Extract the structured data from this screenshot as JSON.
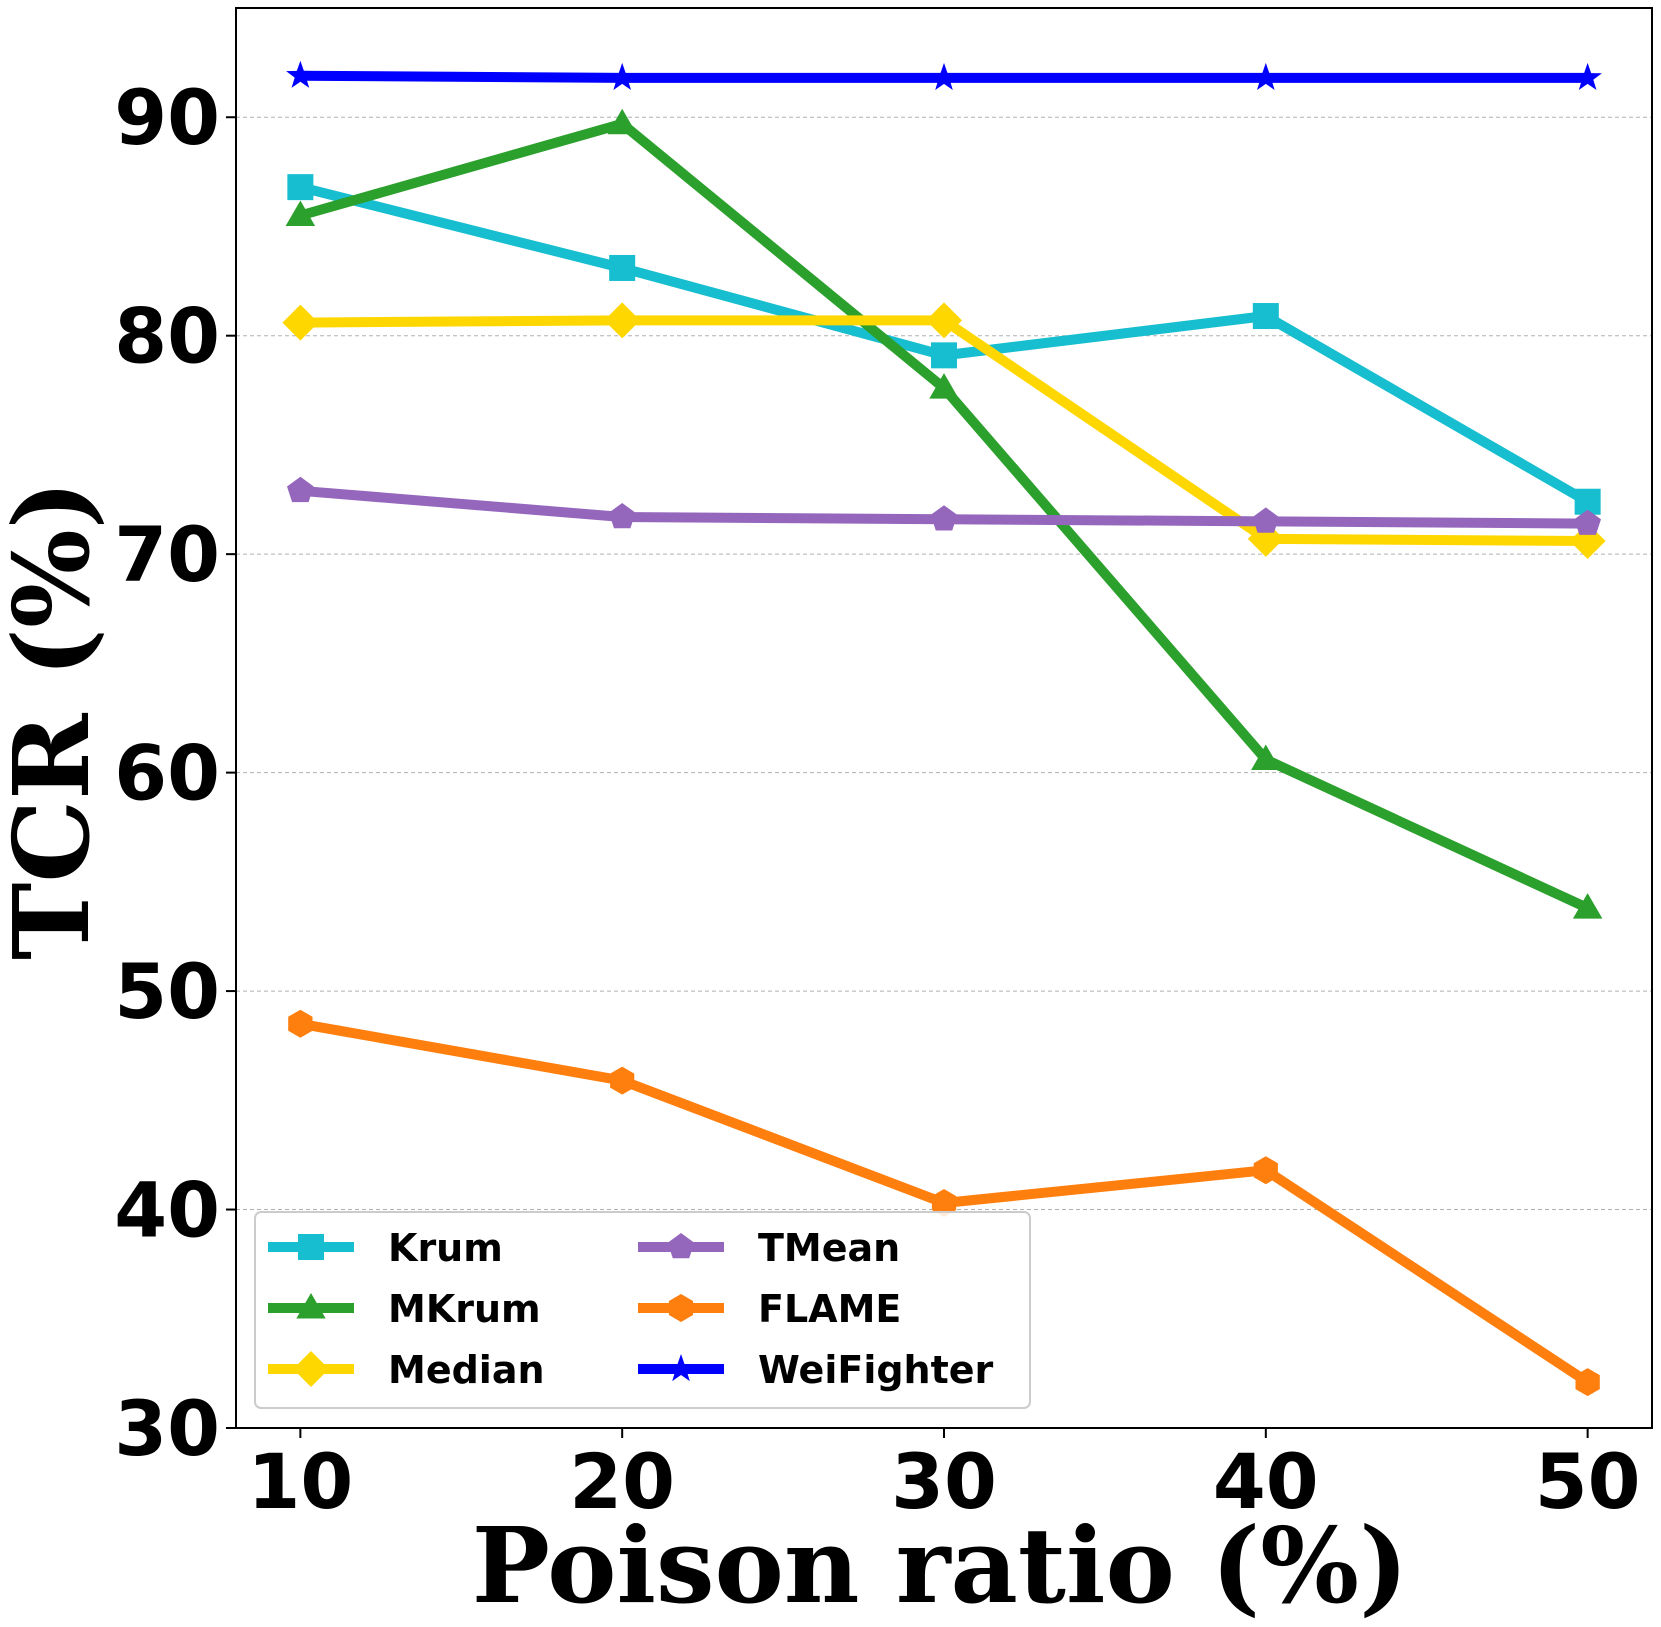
{
  "chart_data": {
    "type": "line",
    "title": "",
    "xlabel": "Poison ratio (%)",
    "ylabel": "TCR (%)",
    "x": [
      10,
      20,
      30,
      40,
      50
    ],
    "xticks": [
      "10",
      "20",
      "30",
      "40",
      "50"
    ],
    "yticks": [
      "30",
      "40",
      "50",
      "60",
      "70",
      "80",
      "90"
    ],
    "xlim": [
      8,
      52
    ],
    "ylim": [
      30,
      95
    ],
    "grid": "horizontal-dashed",
    "legend_position": "lower-left",
    "series": [
      {
        "name": "Krum",
        "color": "#17becf",
        "marker": "square",
        "values": [
          86.8,
          83.1,
          79.1,
          80.9,
          72.4
        ]
      },
      {
        "name": "MKrum",
        "color": "#2ca02c",
        "marker": "triangle",
        "values": [
          85.5,
          89.7,
          77.6,
          60.6,
          53.8
        ]
      },
      {
        "name": "Median",
        "color": "#ffd700",
        "marker": "diamond",
        "values": [
          80.6,
          80.7,
          80.7,
          70.7,
          70.6
        ]
      },
      {
        "name": "TMean",
        "color": "#9467bd",
        "marker": "pentagon",
        "values": [
          72.9,
          71.7,
          71.6,
          71.5,
          71.4
        ]
      },
      {
        "name": "FLAME",
        "color": "#ff7f0e",
        "marker": "hexagon",
        "values": [
          48.5,
          45.9,
          40.3,
          41.8,
          32.1
        ]
      },
      {
        "name": "WeiFighter",
        "color": "#0000ff",
        "marker": "star",
        "values": [
          91.9,
          91.8,
          91.8,
          91.8,
          91.8
        ]
      }
    ]
  }
}
